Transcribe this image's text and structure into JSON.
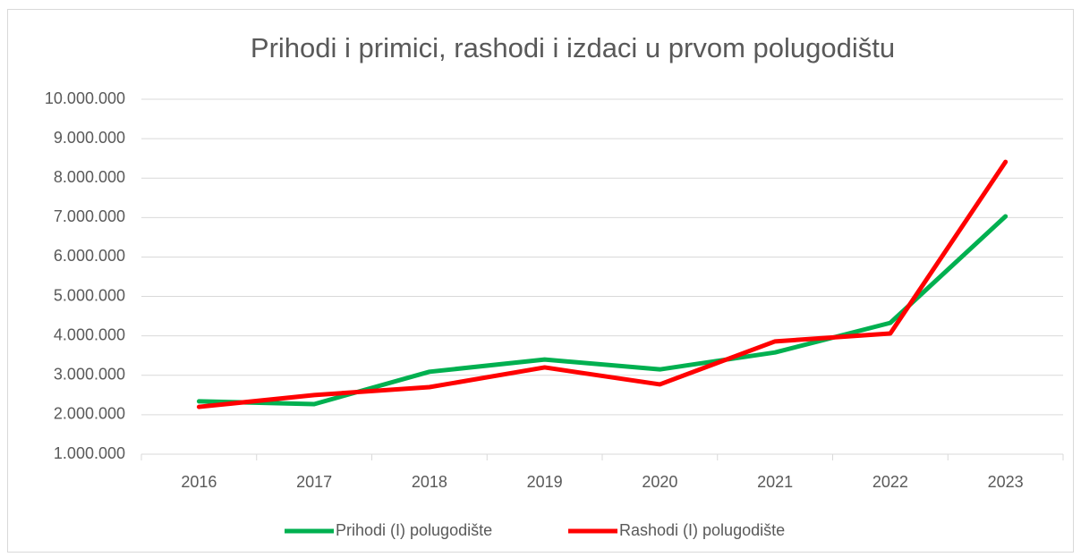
{
  "chart_data": {
    "type": "line",
    "title": "Prihodi i primici, rashodi i izdaci u prvom polugodištu",
    "categories": [
      "2016",
      "2017",
      "2018",
      "2019",
      "2020",
      "2021",
      "2022",
      "2023"
    ],
    "series": [
      {
        "name": "Prihodi (I) polugodište",
        "color": "#00b050",
        "values": [
          2340000,
          2270000,
          3090000,
          3400000,
          3150000,
          3580000,
          4330000,
          7030000
        ]
      },
      {
        "name": "Rashodi (I) polugodište",
        "color": "#ff0000",
        "values": [
          2200000,
          2500000,
          2700000,
          3200000,
          2770000,
          3860000,
          4060000,
          8410000
        ]
      }
    ],
    "ylim": [
      1000000,
      10000000
    ],
    "yticks": [
      {
        "value": 1000000,
        "label": "1.000.000"
      },
      {
        "value": 2000000,
        "label": "2.000.000"
      },
      {
        "value": 3000000,
        "label": "3.000.000"
      },
      {
        "value": 4000000,
        "label": "4.000.000"
      },
      {
        "value": 5000000,
        "label": "5.000.000"
      },
      {
        "value": 6000000,
        "label": "6.000.000"
      },
      {
        "value": 7000000,
        "label": "7.000.000"
      },
      {
        "value": 8000000,
        "label": "8.000.000"
      },
      {
        "value": 9000000,
        "label": "9.000.000"
      },
      {
        "value": 10000000,
        "label": "10.000.000"
      }
    ],
    "grid": true,
    "legend": "bottom"
  }
}
